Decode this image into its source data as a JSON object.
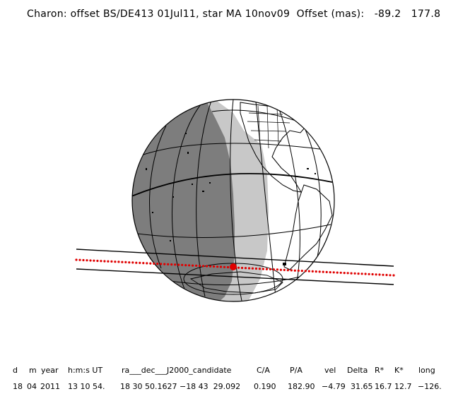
{
  "title": {
    "text": "Charon: offset BS/DE413 01Jul11, star MA 10nov09  Offset (mas):",
    "offset_x": "-89.2",
    "offset_y": "177.8"
  },
  "table": {
    "headers": [
      "d",
      "m",
      "year",
      "h:m:s UT",
      "ra___dec___J2000_candidate",
      "C/A",
      "P/A",
      "vel",
      "Delta",
      "R*",
      "K*",
      "long"
    ],
    "values": [
      "18",
      "04",
      "2011",
      "13 10 54.",
      "18 30 50.1627 −18 43  29.092",
      "0.190",
      "182.90",
      "−4.79",
      "31.65",
      "16.7",
      "12.7",
      "−126."
    ]
  },
  "colors": {
    "night": "#7d7d7d",
    "twilight": "#c8c8c8",
    "day": "#ffffff",
    "track": "#e00000",
    "lines": "#000000"
  },
  "icons": [
    "globe-icon",
    "occultation-track",
    "closest-approach-marker"
  ]
}
